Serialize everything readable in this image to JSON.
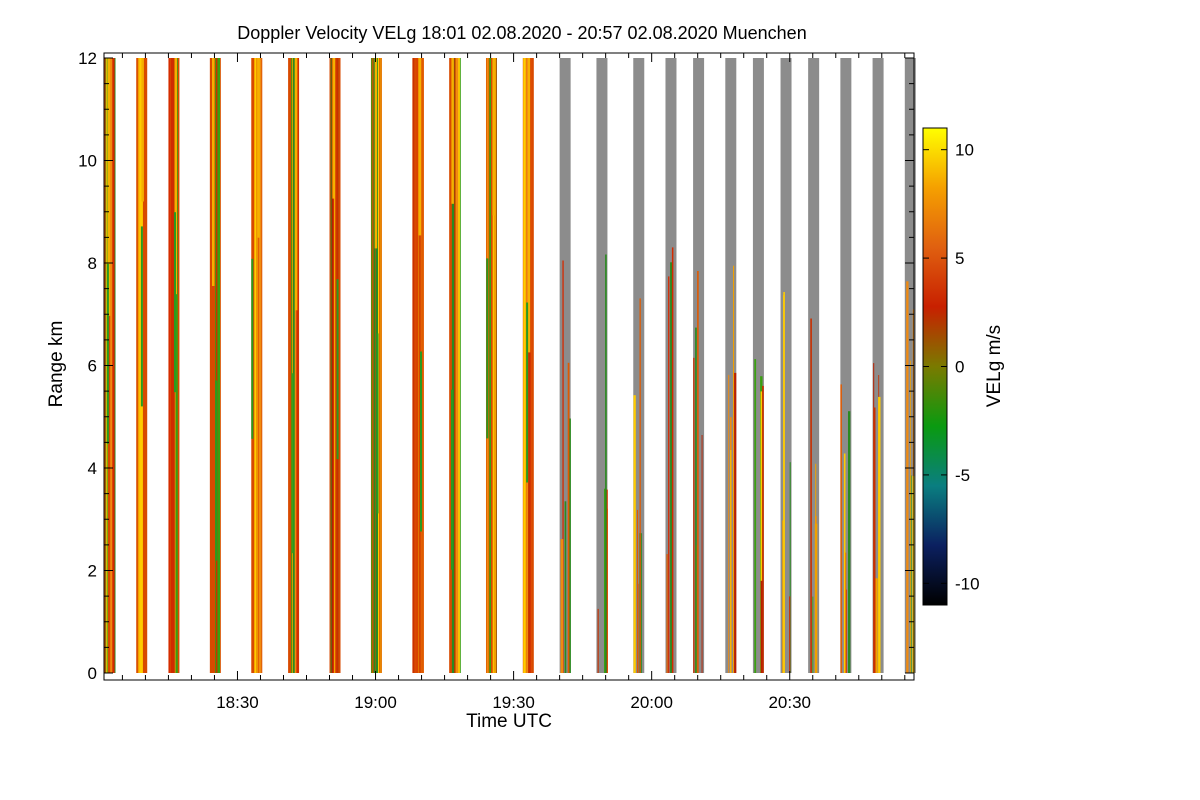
{
  "chart_data": {
    "type": "heatmap",
    "title": "Doppler Velocity VELg   18:01 02.08.2020 - 20:57 02.08.2020 Muenchen",
    "xlabel": "Time UTC",
    "ylabel": "Range km",
    "x_ticks": [
      "18:30",
      "19:00",
      "19:30",
      "20:00",
      "20:30"
    ],
    "x_tick_minutes": [
      30,
      60,
      90,
      120,
      150
    ],
    "xlim_minutes": [
      1,
      177
    ],
    "y_ticks": [
      "0",
      "2",
      "4",
      "6",
      "8",
      "10",
      "12"
    ],
    "ylim": [
      0,
      12
    ],
    "colorbar": {
      "label": "VELg m/s",
      "range": [
        -11,
        11
      ],
      "ticks": [
        "10",
        "5",
        "0",
        "-5",
        "-10"
      ],
      "tick_values": [
        10,
        5,
        0,
        -5,
        -10
      ],
      "colors": [
        "#000000",
        "#0b2060",
        "#0a7e80",
        "#0a9a10",
        "#7a7a00",
        "#c82000",
        "#e06010",
        "#f5a000",
        "#ffff00"
      ]
    },
    "scan_start_minutes": [
      1,
      8,
      15,
      24,
      33,
      41,
      50,
      59,
      68,
      76,
      84,
      92,
      100,
      108,
      116,
      123,
      129,
      136,
      142,
      148,
      154,
      161,
      168,
      175
    ],
    "noise_color": "#8c8c8c"
  }
}
